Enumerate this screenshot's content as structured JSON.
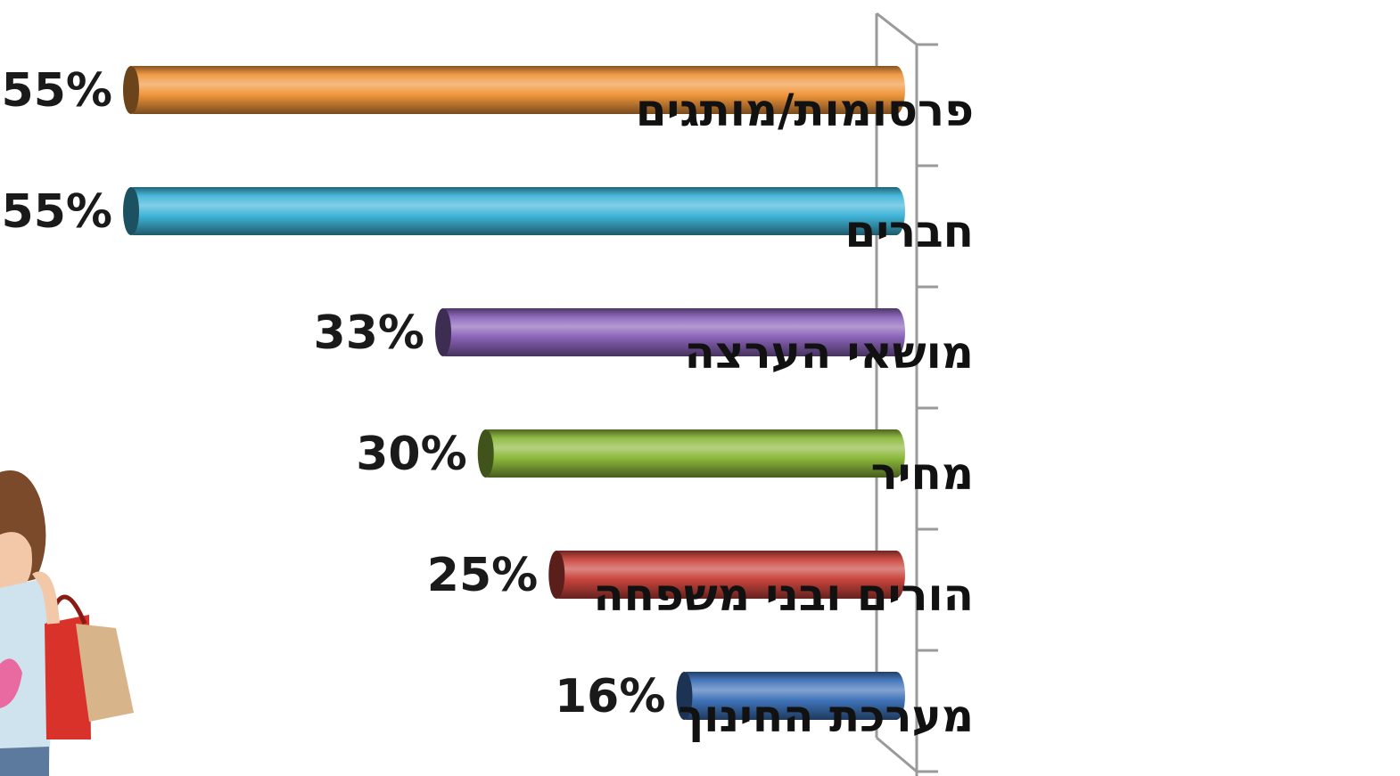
{
  "chart_data": {
    "type": "bar",
    "orientation": "horizontal",
    "direction": "rtl",
    "categories": [
      "פרסומות/מותגים",
      "חברים",
      "מושאי הערצה",
      "מחיר",
      "הורים ובני משפחה",
      "מערכת החינוך"
    ],
    "values": [
      55,
      55,
      33,
      30,
      25,
      16
    ],
    "value_labels": [
      "55%",
      "55%",
      "33%",
      "30%",
      "25%",
      "16%"
    ],
    "bar_colors": [
      "#f0963c",
      "#3fb4d8",
      "#8a63b8",
      "#8cb83c",
      "#c8443c",
      "#3e72b8"
    ],
    "xlim": [
      0,
      55
    ],
    "grid": false,
    "legend": "none"
  }
}
